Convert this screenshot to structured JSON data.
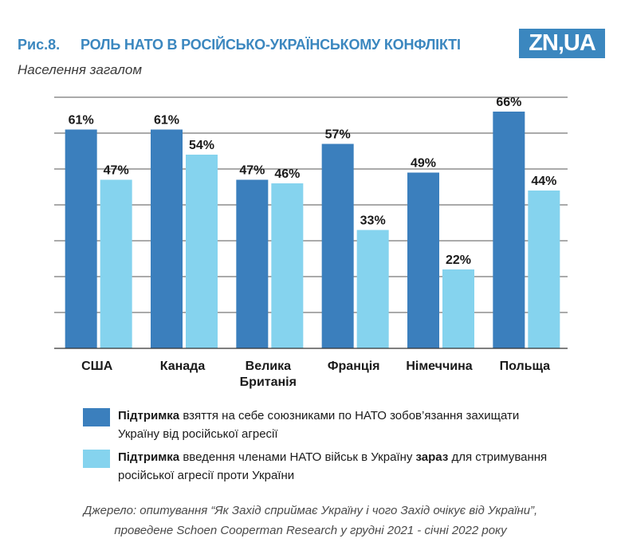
{
  "figure": {
    "number": "Рис.8.",
    "title": "РОЛЬ НАТО В РОСІЙСЬКО-УКРАЇНСЬКОМУ КОНФЛІКТІ",
    "subtitle": "Населення загалом",
    "logo": "ZN,UA",
    "source_line1": "Джерело: опитування “Як Захід сприймає Україну і чого Захід очікує від України”,",
    "source_line2": "проведене Schoen Cooperman Research у грудні 2021 - січні 2022 року"
  },
  "legend": [
    {
      "bold": "Підтримка",
      "text": " взяття на себе союзниками по НАТО зобов’язання захищати Україну від російської агресії"
    },
    {
      "bold": "Підтримка",
      "text_before": " введення членами НАТО військ в Україну ",
      "bold2": "зараз",
      "text_after": " для стримування російської агресії проти України"
    }
  ],
  "colors": {
    "series1": "#3b7fbd",
    "series2": "#85d3ee",
    "title": "#3b87bf",
    "grid": "#555555"
  },
  "chart_data": {
    "type": "bar",
    "categories": [
      "США",
      "Канада",
      "Велика\nБританія",
      "Франція",
      "Німеччина",
      "Польща"
    ],
    "series": [
      {
        "values": [
          61,
          61,
          47,
          57,
          49,
          66
        ],
        "labels": [
          "61%",
          "61%",
          "47%",
          "57%",
          "49%",
          "66%"
        ]
      },
      {
        "values": [
          47,
          54,
          46,
          33,
          22,
          44
        ],
        "labels": [
          "47%",
          "54%",
          "46%",
          "33%",
          "22%",
          "44%"
        ]
      }
    ],
    "ylim": [
      0,
      70
    ],
    "grid": true,
    "legend_position": "bottom"
  }
}
